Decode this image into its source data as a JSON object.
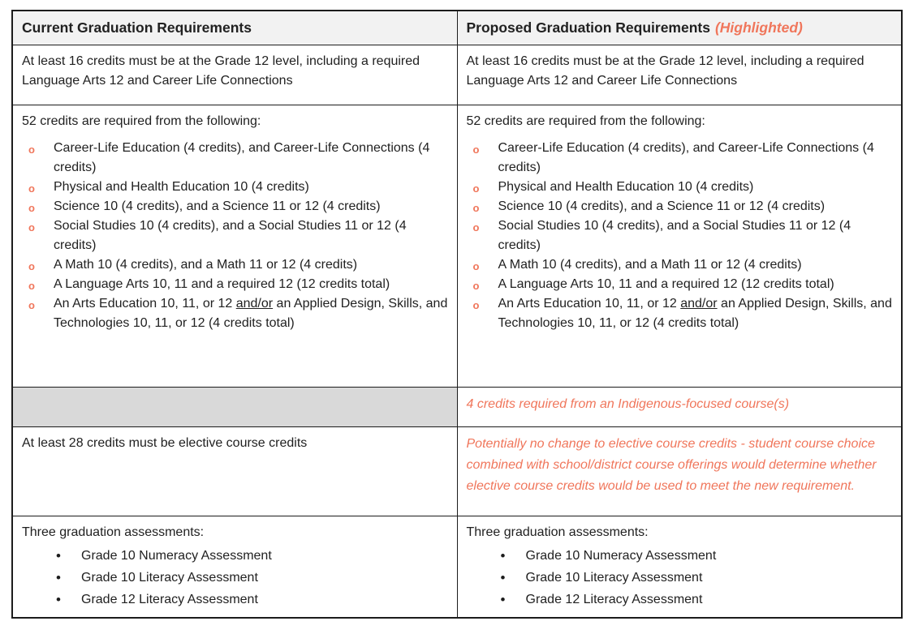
{
  "colors": {
    "accent": "#f0765b",
    "header_background": "#f2f2f2",
    "shaded_cell_background": "#d9d9d9",
    "text": "#212121",
    "border": "#1c1c1c"
  },
  "header": {
    "current_title": "Current Graduation Requirements",
    "proposed_title": "Proposed Graduation Requirements",
    "proposed_suffix": "(Highlighted)"
  },
  "rows": {
    "grade12_credits": {
      "text": "At least 16 credits must be at the Grade 12 level, including a required Language Arts 12 and Career Life Connections"
    },
    "credits_52": {
      "intro": "52 credits are required from the following:",
      "bullet_glyph": "o",
      "items": [
        "Career-Life Education (4 credits), and Career-Life Connections (4 credits)",
        "Physical and Health Education 10 (4 credits)",
        "Science 10 (4 credits), and a Science 11 or 12 (4 credits)",
        "Social Studies 10 (4 credits), and a Social Studies 11 or 12 (4 credits)",
        "A Math 10 (4 credits), and a Math 11 or 12 (4 credits)",
        "A Language Arts 10, 11 and a required 12 (12 credits total)"
      ],
      "arts_item": {
        "pre": "An Arts Education 10, 11, or 12 ",
        "underlined": "and/or",
        "post": " an Applied Design, Skills, and Technologies 10, 11, or 12 (4 credits total)"
      }
    },
    "indigenous": {
      "current": "",
      "proposed": "4 credits required from an Indigenous-focused course(s)"
    },
    "electives": {
      "current": "At least 28 credits must be elective course credits",
      "proposed": "Potentially no change to elective course credits - student course choice combined with school/district course offerings would determine whether elective course credits would be used to meet the new requirement."
    },
    "assessments": {
      "intro": "Three graduation assessments:",
      "bullet_glyph": "•",
      "items": [
        "Grade 10 Numeracy Assessment",
        "Grade 10 Literacy Assessment",
        "Grade 12 Literacy Assessment"
      ]
    }
  }
}
